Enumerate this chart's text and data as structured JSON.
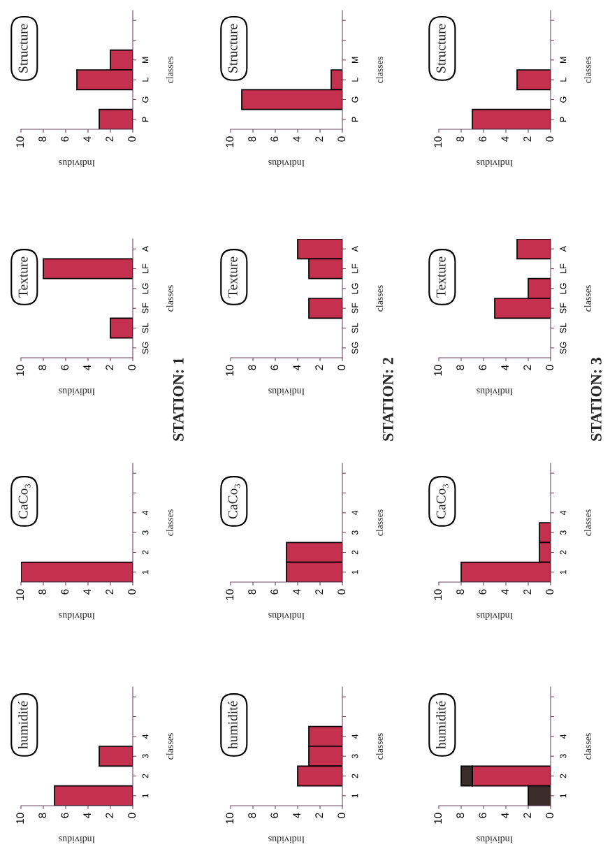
{
  "chart_data": [
    {
      "type": "bar",
      "orientation": "horizontal",
      "title": "Structure",
      "xlabel": "Individus",
      "ylabel": "classes",
      "categories": [
        null,
        null,
        "M",
        "L",
        "G",
        "P"
      ],
      "values": [
        0,
        0,
        2,
        5,
        0,
        3
      ],
      "color": "#c4304e",
      "xlim": [
        10,
        0
      ],
      "xticks": [
        10,
        8,
        6,
        4,
        2,
        0
      ]
    },
    {
      "type": "bar",
      "orientation": "horizontal",
      "title": "Structure",
      "xlabel": "Individus",
      "ylabel": "classes",
      "categories": [
        null,
        null,
        "M",
        "L",
        "G",
        "P"
      ],
      "values": [
        0,
        0,
        0,
        1,
        9,
        0
      ],
      "color": "#c4304e",
      "xlim": [
        10,
        0
      ],
      "xticks": [
        10,
        8,
        6,
        4,
        2,
        0
      ]
    },
    {
      "type": "bar",
      "orientation": "horizontal",
      "title": "Structure",
      "xlabel": "Individus",
      "ylabel": "classes",
      "categories": [
        null,
        null,
        "M",
        "L",
        "G",
        "P"
      ],
      "values": [
        0,
        0,
        0,
        3,
        0,
        7
      ],
      "color": "#c4304e",
      "xlim": [
        10,
        0
      ],
      "xticks": [
        10,
        8,
        6,
        4,
        2,
        0
      ]
    },
    {
      "type": "bar",
      "orientation": "horizontal",
      "title": "Texture",
      "xlabel": "Individus",
      "ylabel": "classes",
      "categories": [
        "A",
        "LF",
        "LG",
        "SF",
        "SL",
        "SG"
      ],
      "values": [
        0,
        8,
        0,
        0,
        2,
        0
      ],
      "color": "#c4304e",
      "xlim": [
        10,
        0
      ],
      "xticks": [
        10,
        8,
        6,
        4,
        2,
        0
      ],
      "annotations": [
        "STATION: 1"
      ]
    },
    {
      "type": "bar",
      "orientation": "horizontal",
      "title": "Texture",
      "xlabel": "Individus",
      "ylabel": "classes",
      "categories": [
        "A",
        "LF",
        "LG",
        "SF",
        "SL",
        "SG"
      ],
      "values": [
        4,
        3,
        0,
        3,
        0,
        0
      ],
      "color": "#c4304e",
      "xlim": [
        10,
        0
      ],
      "xticks": [
        10,
        8,
        6,
        4,
        2,
        0
      ],
      "annotations": [
        "STATION: 2"
      ]
    },
    {
      "type": "bar",
      "orientation": "horizontal",
      "title": "Texture",
      "xlabel": "Individus",
      "ylabel": "classes",
      "categories": [
        "A",
        "LF",
        "LG",
        "SF",
        "SL",
        "SG"
      ],
      "values": [
        3,
        0,
        2,
        5,
        0,
        0
      ],
      "color": "#c4304e",
      "xlim": [
        10,
        0
      ],
      "xticks": [
        10,
        8,
        6,
        4,
        2,
        0
      ],
      "annotations": [
        "STATION: 3"
      ]
    },
    {
      "type": "bar",
      "orientation": "horizontal",
      "title": "CaCo₃",
      "xlabel": "Individus",
      "ylabel": "classes",
      "categories": [
        null,
        null,
        "4",
        "3",
        "2",
        "1"
      ],
      "values": [
        0,
        0,
        0,
        0,
        0,
        10
      ],
      "color": "#c4304e",
      "xlim": [
        10,
        0
      ],
      "xticks": [
        10,
        8,
        6,
        4,
        2,
        0
      ]
    },
    {
      "type": "bar",
      "orientation": "horizontal",
      "title": "CaCo₃",
      "xlabel": "Individus",
      "ylabel": "classes",
      "categories": [
        null,
        null,
        "4",
        "3",
        "2",
        "1"
      ],
      "values": [
        0,
        0,
        0,
        0,
        5,
        5
      ],
      "color": "#c4304e",
      "xlim": [
        10,
        0
      ],
      "xticks": [
        10,
        8,
        6,
        4,
        2,
        0
      ]
    },
    {
      "type": "bar",
      "orientation": "horizontal",
      "title": "CaCo₃",
      "xlabel": "Individus",
      "ylabel": "classes",
      "categories": [
        null,
        null,
        "4",
        "3",
        "2",
        "1"
      ],
      "values": [
        0,
        0,
        0,
        1,
        1,
        8
      ],
      "color": "#c4304e",
      "xlim": [
        10,
        0
      ],
      "xticks": [
        10,
        8,
        6,
        4,
        2,
        0
      ]
    },
    {
      "type": "bar",
      "orientation": "horizontal",
      "title": "humidité",
      "xlabel": "Individus",
      "ylabel": "classes",
      "categories": [
        null,
        null,
        "4",
        "3",
        "2",
        "1"
      ],
      "values": [
        0,
        0,
        0,
        3,
        0,
        7
      ],
      "color": "#c4304e",
      "xlim": [
        10,
        0
      ],
      "xticks": [
        10,
        8,
        6,
        4,
        2,
        0
      ]
    },
    {
      "type": "bar",
      "orientation": "horizontal",
      "title": "humidité",
      "xlabel": "Individus",
      "ylabel": "classes",
      "categories": [
        null,
        null,
        "4",
        "3",
        "2",
        "1"
      ],
      "values": [
        0,
        0,
        3,
        3,
        4,
        0
      ],
      "color": "#c4304e",
      "xlim": [
        10,
        0
      ],
      "xticks": [
        10,
        8,
        6,
        4,
        2,
        0
      ]
    },
    {
      "type": "bar",
      "orientation": "horizontal",
      "stacked": true,
      "title": "humidité",
      "xlabel": "Individus",
      "ylabel": "classes",
      "categories": [
        null,
        null,
        "4",
        "3",
        "2",
        "1"
      ],
      "series": [
        {
          "color": "#c4304e",
          "values": [
            0,
            0,
            0,
            0,
            7,
            0
          ]
        },
        {
          "color": "#3b2c2c",
          "values": [
            0,
            0,
            0,
            0,
            1,
            2
          ]
        }
      ],
      "xlim": [
        10,
        0
      ],
      "xticks": [
        10,
        8,
        6,
        4,
        2,
        0
      ]
    }
  ]
}
